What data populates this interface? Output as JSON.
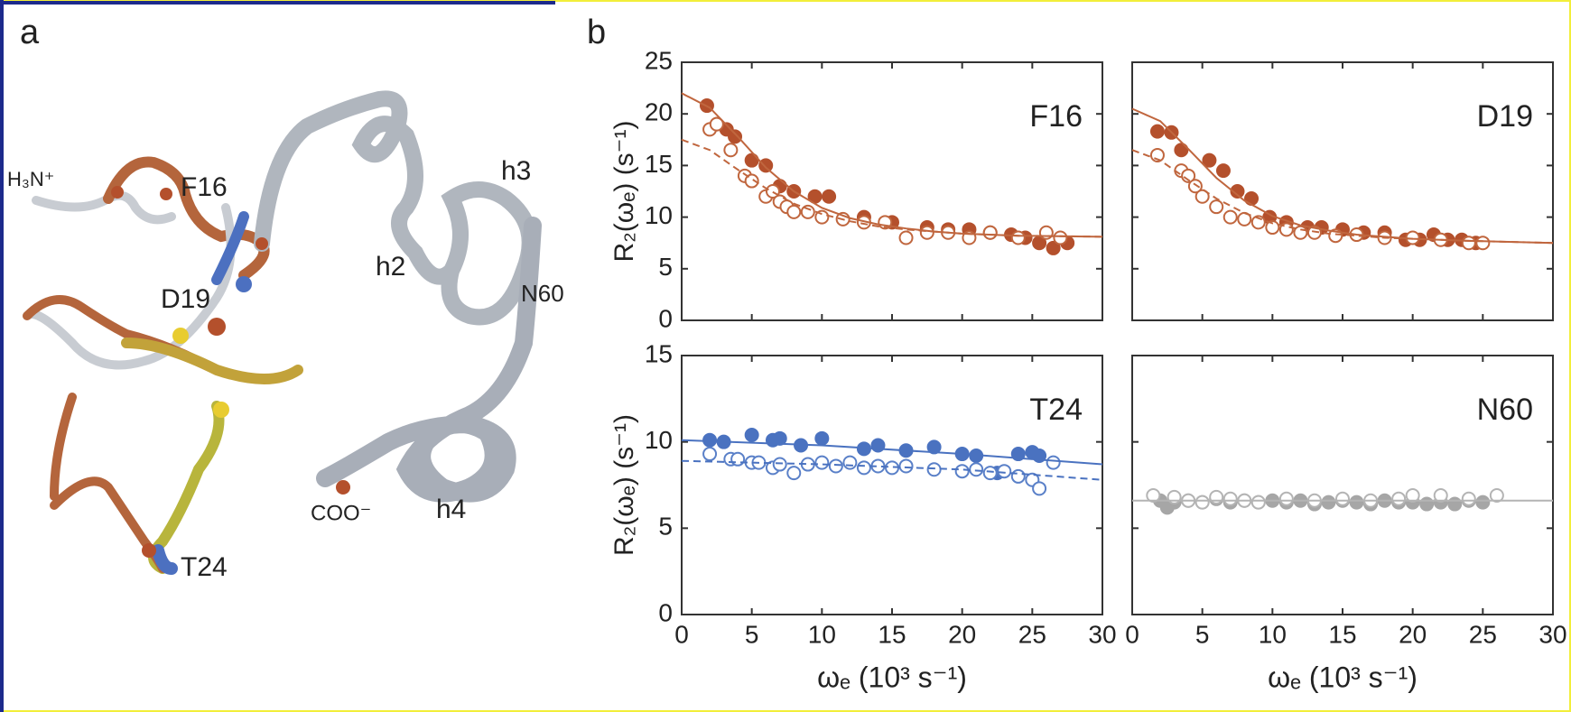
{
  "figure_labels": {
    "a": "a",
    "b": "b"
  },
  "structure_labels": {
    "n_term": "H₃N⁺",
    "f16": "F16",
    "d19": "D19",
    "t24": "T24",
    "h2": "h2",
    "h3": "h3",
    "n60": "N60",
    "h4": "h4",
    "c_term": "COO⁻"
  },
  "chart_data": [
    {
      "type": "scatter",
      "title": "F16",
      "y_label": "R₂(ωₑ) (s⁻¹)",
      "xtick_labels": false,
      "ytick_labels": true,
      "xlim": [
        0,
        30
      ],
      "xticks": [
        0,
        5,
        10,
        15,
        20,
        25,
        30
      ],
      "ylim": [
        0,
        25
      ],
      "yticks": [
        0,
        5,
        10,
        15,
        20,
        25
      ],
      "series": [
        {
          "style": "filled",
          "color": "#b4502c",
          "x": [
            1.8,
            2.5,
            3.2,
            3.8,
            5,
            6,
            7,
            8,
            9.5,
            10.5,
            13,
            15,
            17.5,
            19,
            20.5,
            22,
            23.5,
            24.5,
            25.5,
            26.5,
            27.5
          ],
          "values": [
            20.8,
            19,
            18.5,
            17.8,
            15.5,
            15,
            13,
            12.5,
            12,
            12,
            10,
            9.5,
            9,
            8.8,
            8.8,
            8.5,
            8.3,
            8,
            7.5,
            7,
            7.5
          ]
        },
        {
          "style": "open",
          "color": "#c0663e",
          "x": [
            2,
            2.5,
            3.5,
            4.5,
            5,
            6,
            6.5,
            7,
            7.5,
            8,
            9,
            10,
            11.5,
            13,
            14.5,
            16,
            17.5,
            19,
            20.5,
            22,
            24,
            26,
            27
          ],
          "values": [
            18.5,
            19,
            16.5,
            14,
            13.5,
            12,
            12.5,
            11.5,
            11,
            10.5,
            10.5,
            10,
            9.8,
            9.5,
            9.5,
            8,
            8.5,
            8.5,
            8,
            8.5,
            8,
            8.5,
            8
          ]
        },
        {
          "style": "line",
          "color": "#c0663e",
          "x": [
            0,
            2,
            4,
            6,
            8,
            10,
            12,
            14,
            16,
            18,
            20,
            24,
            30
          ],
          "values": [
            22,
            20.6,
            17.8,
            14.8,
            12.5,
            10.9,
            9.9,
            9.3,
            8.9,
            8.6,
            8.4,
            8.2,
            8.1
          ]
        },
        {
          "style": "dashed",
          "color": "#c0663e",
          "x": [
            0,
            2,
            4,
            6,
            8,
            10,
            12,
            14,
            16,
            20,
            24,
            30
          ],
          "values": [
            17.5,
            16.5,
            14.6,
            12.8,
            11.3,
            10.3,
            9.6,
            9.1,
            8.8,
            8.4,
            8.2,
            8.1
          ]
        }
      ]
    },
    {
      "type": "scatter",
      "title": "D19",
      "xtick_labels": false,
      "ytick_labels": false,
      "xlim": [
        0,
        30
      ],
      "xticks": [
        0,
        5,
        10,
        15,
        20,
        25,
        30
      ],
      "ylim": [
        0,
        25
      ],
      "yticks": [
        0,
        5,
        10,
        15,
        20,
        25
      ],
      "series": [
        {
          "style": "filled",
          "color": "#b4502c",
          "x": [
            1.8,
            2.8,
            3.5,
            5.5,
            6.5,
            7.5,
            8.5,
            9.8,
            11,
            12.5,
            13.5,
            15,
            16.5,
            18,
            19.5,
            20.5,
            21.5,
            22.5,
            23.5,
            24.5
          ],
          "values": [
            18.3,
            18.2,
            16.5,
            15.5,
            14.5,
            12.5,
            11.8,
            10,
            9.5,
            9,
            9,
            8.8,
            8.5,
            8.5,
            7.8,
            7.8,
            8.3,
            7.8,
            7.8,
            7.5
          ]
        },
        {
          "style": "open",
          "color": "#c0663e",
          "x": [
            1.8,
            3.5,
            4,
            4.5,
            5,
            6,
            7,
            8,
            9,
            10,
            11,
            12,
            13,
            14.5,
            16,
            18,
            20,
            22,
            24,
            25
          ],
          "values": [
            16,
            14.5,
            14,
            13,
            12,
            11,
            10,
            9.8,
            9.5,
            9,
            8.8,
            8.5,
            8.5,
            8.2,
            8.3,
            8,
            8,
            7.8,
            7.5,
            7.5
          ]
        },
        {
          "style": "line",
          "color": "#c0663e",
          "x": [
            0,
            2,
            4,
            6,
            8,
            10,
            12,
            14,
            16,
            20,
            24,
            30
          ],
          "values": [
            20.5,
            19.3,
            16.6,
            13.8,
            11.6,
            10.1,
            9.2,
            8.7,
            8.3,
            7.9,
            7.7,
            7.5
          ]
        },
        {
          "style": "dashed",
          "color": "#c0663e",
          "x": [
            0,
            2,
            4,
            6,
            8,
            10,
            12,
            14,
            18,
            24,
            30
          ],
          "values": [
            16.5,
            15.5,
            13.6,
            11.8,
            10.4,
            9.4,
            8.8,
            8.4,
            8,
            7.7,
            7.5
          ]
        }
      ]
    },
    {
      "type": "scatter",
      "title": "T24",
      "y_label": "R₂(ωₑ) (s⁻¹)",
      "x_label": "ωₑ (10³ s⁻¹)",
      "xtick_labels": true,
      "ytick_labels": true,
      "xlim": [
        0,
        30
      ],
      "xticks": [
        0,
        5,
        10,
        15,
        20,
        25,
        30
      ],
      "ylim": [
        0,
        15
      ],
      "yticks": [
        0,
        5,
        10,
        15
      ],
      "series": [
        {
          "style": "filled",
          "color": "#4a72c0",
          "x": [
            2,
            3,
            5,
            6.5,
            7,
            8.5,
            10,
            13,
            14,
            16,
            18,
            20,
            21,
            22.5,
            24,
            25,
            25.5
          ],
          "values": [
            10.1,
            10,
            10.4,
            10.1,
            10.2,
            9.8,
            10.2,
            9.6,
            9.8,
            9.5,
            9.7,
            9.3,
            9.2,
            8.2,
            9.3,
            9.4,
            9.2
          ]
        },
        {
          "style": "open",
          "color": "#5a80c8",
          "x": [
            2,
            3.5,
            4,
            5,
            5.5,
            6.5,
            7,
            8,
            9,
            10,
            11,
            12,
            13,
            14,
            15,
            16,
            18,
            20,
            21,
            22,
            23,
            24,
            25,
            25.5,
            26.5
          ],
          "values": [
            9.3,
            9,
            9,
            8.8,
            8.8,
            8.5,
            8.7,
            8.2,
            8.7,
            8.8,
            8.6,
            8.8,
            8.5,
            8.6,
            8.5,
            8.6,
            8.4,
            8.3,
            8.4,
            8.2,
            8.3,
            8,
            7.8,
            7.3,
            8.8
          ]
        },
        {
          "style": "line",
          "color": "#4a72c0",
          "x": [
            0,
            10,
            20,
            30
          ],
          "values": [
            10.1,
            9.8,
            9.3,
            8.7
          ]
        },
        {
          "style": "dashed",
          "color": "#4a72c0",
          "x": [
            0,
            10,
            20,
            30
          ],
          "values": [
            8.9,
            8.7,
            8.4,
            7.8
          ]
        }
      ]
    },
    {
      "type": "scatter",
      "title": "N60",
      "x_label": "ωₑ (10³ s⁻¹)",
      "xtick_labels": true,
      "ytick_labels": false,
      "xlim": [
        0,
        30
      ],
      "xticks": [
        0,
        5,
        10,
        15,
        20,
        25,
        30
      ],
      "ylim": [
        0,
        15
      ],
      "yticks": [
        0,
        5,
        10,
        15
      ],
      "series": [
        {
          "style": "filled",
          "color": "#a6a6a6",
          "x": [
            2,
            2.5,
            3,
            4,
            5,
            6,
            7,
            8,
            9,
            10,
            11,
            12,
            13,
            14,
            15,
            16,
            17,
            18,
            19,
            20,
            21,
            22,
            23,
            24,
            25
          ],
          "values": [
            6.6,
            6.2,
            6.5,
            6.6,
            6.5,
            6.7,
            6.5,
            6.6,
            6.5,
            6.6,
            6.5,
            6.6,
            6.4,
            6.5,
            6.6,
            6.5,
            6.4,
            6.6,
            6.5,
            6.5,
            6.4,
            6.5,
            6.4,
            6.6,
            6.5
          ]
        },
        {
          "style": "open",
          "color": "#b4b4b4",
          "x": [
            1.5,
            3,
            4,
            5,
            6,
            7,
            8,
            9,
            11,
            13,
            15,
            17,
            19,
            20,
            22,
            24,
            26
          ],
          "values": [
            6.9,
            6.8,
            6.6,
            6.5,
            6.8,
            6.7,
            6.6,
            6.5,
            6.7,
            6.6,
            6.7,
            6.6,
            6.7,
            6.9,
            6.9,
            6.7,
            6.9
          ]
        },
        {
          "style": "line",
          "color": "#b4b4b4",
          "x": [
            0,
            30
          ],
          "values": [
            6.6,
            6.6
          ]
        }
      ]
    }
  ]
}
